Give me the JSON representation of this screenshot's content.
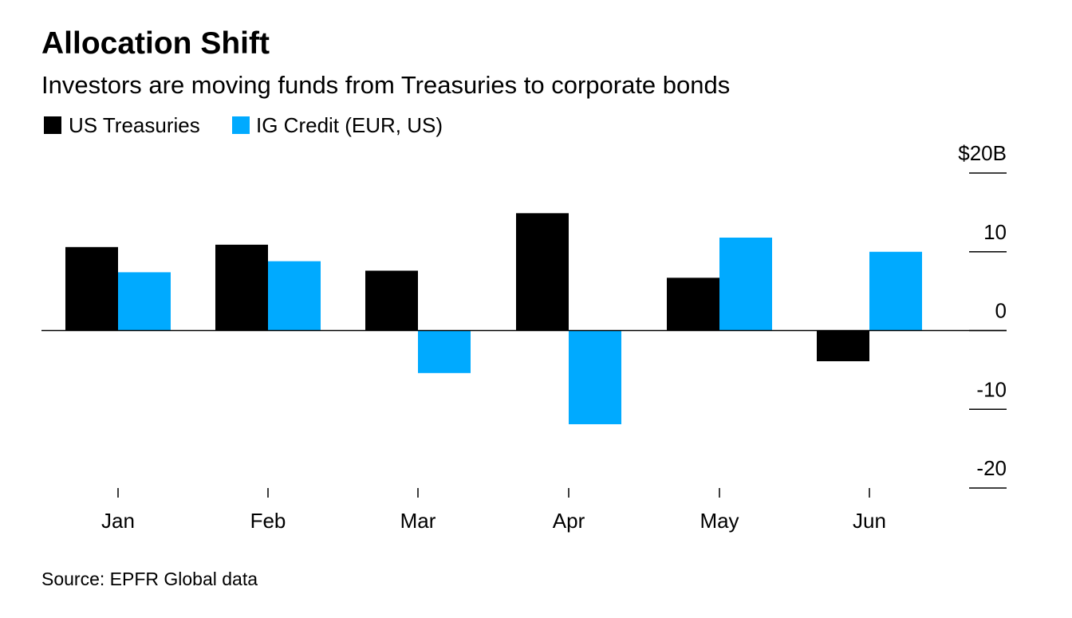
{
  "chart_data": {
    "type": "bar",
    "title": "Allocation Shift",
    "subtitle": "Investors are moving funds from Treasuries to corporate bonds",
    "categories": [
      "Jan",
      "Feb",
      "Mar",
      "Apr",
      "May",
      "Jun"
    ],
    "series": [
      {
        "name": "US Treasuries",
        "color": "#000000",
        "values": [
          10.6,
          10.9,
          7.6,
          14.9,
          6.7,
          -3.9
        ]
      },
      {
        "name": "IG Credit (EUR, US)",
        "color": "#00aaff",
        "values": [
          7.4,
          8.8,
          -5.4,
          -11.9,
          11.8,
          10.0
        ]
      }
    ],
    "y_ticks": [
      "$20B",
      "10",
      "0",
      "-10",
      "-20"
    ],
    "ylim": [
      -20,
      20
    ],
    "xlabel": "",
    "ylabel": "",
    "legend_position": "top-left",
    "source": "Source: EPFR Global data"
  }
}
